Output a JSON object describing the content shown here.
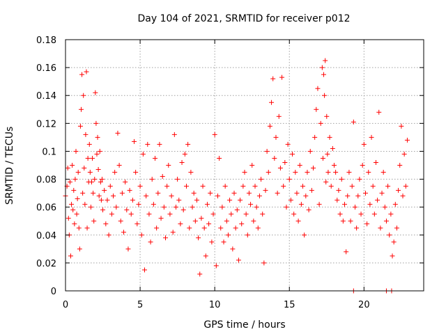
{
  "chart_data": {
    "type": "scatter",
    "title": "Day 104 of 2021, SRMTID for receiver p012",
    "xlabel": "GPS time / hours",
    "ylabel": "SRMTID / TECUs",
    "xlim": [
      0,
      24
    ],
    "ylim": [
      0,
      0.18
    ],
    "grid": true,
    "x_ticks": [
      0,
      5,
      10,
      15,
      20
    ],
    "x_tick_labels": [
      "0",
      "5",
      "10",
      "15",
      "20"
    ],
    "y_ticks": [
      0,
      0.02,
      0.04,
      0.06,
      0.08,
      0.1,
      0.12,
      0.14,
      0.16,
      0.18
    ],
    "y_tick_labels": [
      "0",
      "0.02",
      "0.04",
      "0.06",
      "0.08",
      "0.1",
      "0.12",
      "0.14",
      "0.16",
      "0.18"
    ],
    "marker": "+",
    "color": "#ff0000",
    "series": [
      {
        "name": "SRMTID",
        "points": [
          [
            0.0,
            0.068
          ],
          [
            0.1,
            0.075
          ],
          [
            0.15,
            0.088
          ],
          [
            0.2,
            0.052
          ],
          [
            0.25,
            0.04
          ],
          [
            0.3,
            0.078
          ],
          [
            0.35,
            0.025
          ],
          [
            0.4,
            0.062
          ],
          [
            0.45,
            0.09
          ],
          [
            0.5,
            0.058
          ],
          [
            0.55,
            0.072
          ],
          [
            0.6,
            0.048
          ],
          [
            0.65,
            0.08
          ],
          [
            0.7,
            0.1
          ],
          [
            0.75,
            0.055
          ],
          [
            0.8,
            0.066
          ],
          [
            0.85,
            0.085
          ],
          [
            0.9,
            0.045
          ],
          [
            0.95,
            0.03
          ],
          [
            1.0,
            0.118
          ],
          [
            1.05,
            0.13
          ],
          [
            1.1,
            0.155
          ],
          [
            1.15,
            0.07
          ],
          [
            1.2,
            0.14
          ],
          [
            1.25,
            0.088
          ],
          [
            1.3,
            0.062
          ],
          [
            1.35,
            0.112
          ],
          [
            1.4,
            0.157
          ],
          [
            1.45,
            0.045
          ],
          [
            1.5,
            0.095
          ],
          [
            1.55,
            0.078
          ],
          [
            1.6,
            0.105
          ],
          [
            1.65,
            0.085
          ],
          [
            1.7,
            0.06
          ],
          [
            1.75,
            0.078
          ],
          [
            1.8,
            0.095
          ],
          [
            1.85,
            0.07
          ],
          [
            1.9,
            0.05
          ],
          [
            1.95,
            0.08
          ],
          [
            2.0,
            0.142
          ],
          [
            2.05,
            0.12
          ],
          [
            2.1,
            0.098
          ],
          [
            2.15,
            0.11
          ],
          [
            2.2,
            0.087
          ],
          [
            2.25,
            0.068
          ],
          [
            2.3,
            0.1
          ],
          [
            2.35,
            0.078
          ],
          [
            2.4,
            0.065
          ],
          [
            2.45,
            0.08
          ],
          [
            2.5,
            0.058
          ],
          [
            2.6,
            0.072
          ],
          [
            2.7,
            0.048
          ],
          [
            2.8,
            0.065
          ],
          [
            2.9,
            0.04
          ],
          [
            3.0,
            0.075
          ],
          [
            3.1,
            0.055
          ],
          [
            3.2,
            0.068
          ],
          [
            3.3,
            0.085
          ],
          [
            3.4,
            0.06
          ],
          [
            3.5,
            0.113
          ],
          [
            3.6,
            0.09
          ],
          [
            3.7,
            0.05
          ],
          [
            3.8,
            0.07
          ],
          [
            3.9,
            0.042
          ],
          [
            4.0,
            0.078
          ],
          [
            4.1,
            0.058
          ],
          [
            4.2,
            0.03
          ],
          [
            4.3,
            0.072
          ],
          [
            4.4,
            0.055
          ],
          [
            4.5,
            0.065
          ],
          [
            4.6,
            0.107
          ],
          [
            4.7,
            0.085
          ],
          [
            4.8,
            0.048
          ],
          [
            4.9,
            0.062
          ],
          [
            5.0,
            0.075
          ],
          [
            5.1,
            0.04
          ],
          [
            5.2,
            0.098
          ],
          [
            5.3,
            0.015
          ],
          [
            5.4,
            0.068
          ],
          [
            5.5,
            0.105
          ],
          [
            5.6,
            0.055
          ],
          [
            5.7,
            0.035
          ],
          [
            5.8,
            0.08
          ],
          [
            5.9,
            0.062
          ],
          [
            6.0,
            0.095
          ],
          [
            6.1,
            0.045
          ],
          [
            6.2,
            0.07
          ],
          [
            6.3,
            0.105
          ],
          [
            6.4,
            0.052
          ],
          [
            6.5,
            0.082
          ],
          [
            6.6,
            0.06
          ],
          [
            6.7,
            0.038
          ],
          [
            6.8,
            0.075
          ],
          [
            6.9,
            0.09
          ],
          [
            7.0,
            0.055
          ],
          [
            7.1,
            0.068
          ],
          [
            7.2,
            0.042
          ],
          [
            7.3,
            0.112
          ],
          [
            7.4,
            0.06
          ],
          [
            7.5,
            0.08
          ],
          [
            7.6,
            0.065
          ],
          [
            7.7,
            0.048
          ],
          [
            7.8,
            0.092
          ],
          [
            7.9,
            0.058
          ],
          [
            8.0,
            0.098
          ],
          [
            8.1,
            0.075
          ],
          [
            8.2,
            0.105
          ],
          [
            8.3,
            0.045
          ],
          [
            8.4,
            0.085
          ],
          [
            8.5,
            0.06
          ],
          [
            8.6,
            0.07
          ],
          [
            8.7,
            0.05
          ],
          [
            8.8,
            0.065
          ],
          [
            8.9,
            0.038
          ],
          [
            9.0,
            0.012
          ],
          [
            9.1,
            0.052
          ],
          [
            9.2,
            0.075
          ],
          [
            9.3,
            0.045
          ],
          [
            9.4,
            0.025
          ],
          [
            9.5,
            0.062
          ],
          [
            9.6,
            0.048
          ],
          [
            9.7,
            0.07
          ],
          [
            9.8,
            0.035
          ],
          [
            9.9,
            0.055
          ],
          [
            10.0,
            0.112
          ],
          [
            10.1,
            0.018
          ],
          [
            10.2,
            0.068
          ],
          [
            10.3,
            0.095
          ],
          [
            10.4,
            0.045
          ],
          [
            10.5,
            0.06
          ],
          [
            10.6,
            0.035
          ],
          [
            10.7,
            0.075
          ],
          [
            10.8,
            0.05
          ],
          [
            10.9,
            0.04
          ],
          [
            11.0,
            0.065
          ],
          [
            11.1,
            0.055
          ],
          [
            11.2,
            0.03
          ],
          [
            11.3,
            0.07
          ],
          [
            11.4,
            0.045
          ],
          [
            11.5,
            0.058
          ],
          [
            11.6,
            0.022
          ],
          [
            11.7,
            0.065
          ],
          [
            11.8,
            0.048
          ],
          [
            11.9,
            0.075
          ],
          [
            12.0,
            0.085
          ],
          [
            12.1,
            0.055
          ],
          [
            12.2,
            0.04
          ],
          [
            12.3,
            0.07
          ],
          [
            12.4,
            0.062
          ],
          [
            12.5,
            0.09
          ],
          [
            12.6,
            0.05
          ],
          [
            12.7,
            0.075
          ],
          [
            12.8,
            0.06
          ],
          [
            12.9,
            0.045
          ],
          [
            13.0,
            0.068
          ],
          [
            13.1,
            0.08
          ],
          [
            13.2,
            0.055
          ],
          [
            13.3,
            0.02
          ],
          [
            13.4,
            0.072
          ],
          [
            13.5,
            0.1
          ],
          [
            13.6,
            0.085
          ],
          [
            13.7,
            0.118
          ],
          [
            13.8,
            0.135
          ],
          [
            13.9,
            0.152
          ],
          [
            14.0,
            0.095
          ],
          [
            14.1,
            0.11
          ],
          [
            14.2,
            0.07
          ],
          [
            14.3,
            0.125
          ],
          [
            14.4,
            0.088
          ],
          [
            14.5,
            0.153
          ],
          [
            14.6,
            0.075
          ],
          [
            14.7,
            0.092
          ],
          [
            14.8,
            0.06
          ],
          [
            14.9,
            0.105
          ],
          [
            15.0,
            0.08
          ],
          [
            15.1,
            0.065
          ],
          [
            15.2,
            0.098
          ],
          [
            15.3,
            0.055
          ],
          [
            15.4,
            0.085
          ],
          [
            15.5,
            0.07
          ],
          [
            15.6,
            0.05
          ],
          [
            15.7,
            0.09
          ],
          [
            15.8,
            0.062
          ],
          [
            15.9,
            0.075
          ],
          [
            16.0,
            0.04
          ],
          [
            16.1,
            0.068
          ],
          [
            16.2,
            0.085
          ],
          [
            16.3,
            0.058
          ],
          [
            16.4,
            0.1
          ],
          [
            16.5,
            0.072
          ],
          [
            16.6,
            0.088
          ],
          [
            16.7,
            0.11
          ],
          [
            16.8,
            0.13
          ],
          [
            16.9,
            0.145
          ],
          [
            17.0,
            0.062
          ],
          [
            17.1,
            0.12
          ],
          [
            17.2,
            0.16
          ],
          [
            17.25,
            0.095
          ],
          [
            17.3,
            0.155
          ],
          [
            17.35,
            0.14
          ],
          [
            17.4,
            0.165
          ],
          [
            17.45,
            0.078
          ],
          [
            17.5,
            0.125
          ],
          [
            17.55,
            0.098
          ],
          [
            17.6,
            0.085
          ],
          [
            17.7,
            0.11
          ],
          [
            17.8,
            0.075
          ],
          [
            17.9,
            0.102
          ],
          [
            18.0,
            0.09
          ],
          [
            18.1,
            0.085
          ],
          [
            18.2,
            0.065
          ],
          [
            18.3,
            0.072
          ],
          [
            18.4,
            0.055
          ],
          [
            18.5,
            0.08
          ],
          [
            18.6,
            0.05
          ],
          [
            18.7,
            0.062
          ],
          [
            18.8,
            0.028
          ],
          [
            18.9,
            0.068
          ],
          [
            19.0,
            0.085
          ],
          [
            19.1,
            0.05
          ],
          [
            19.2,
            0.075
          ],
          [
            19.3,
            0.121
          ],
          [
            19.4,
            0.06
          ],
          [
            19.5,
            0.045
          ],
          [
            19.6,
            0.068
          ],
          [
            19.7,
            0.08
          ],
          [
            19.8,
            0.055
          ],
          [
            19.9,
            0.09
          ],
          [
            20.0,
            0.105
          ],
          [
            20.1,
            0.07
          ],
          [
            20.2,
            0.048
          ],
          [
            20.3,
            0.085
          ],
          [
            20.4,
            0.062
          ],
          [
            20.5,
            0.11
          ],
          [
            20.6,
            0.075
          ],
          [
            20.7,
            0.055
          ],
          [
            20.8,
            0.092
          ],
          [
            20.9,
            0.065
          ],
          [
            21.0,
            0.128
          ],
          [
            21.1,
            0.045
          ],
          [
            21.2,
            0.07
          ],
          [
            21.3,
            0.085
          ],
          [
            21.4,
            0.06
          ],
          [
            21.5,
            0.05
          ],
          [
            21.6,
            0.075
          ],
          [
            21.7,
            0.04
          ],
          [
            21.8,
            0.055
          ],
          [
            21.9,
            0.025
          ],
          [
            22.0,
            0.035
          ],
          [
            22.1,
            0.062
          ],
          [
            22.2,
            0.045
          ],
          [
            22.3,
            0.072
          ],
          [
            22.4,
            0.09
          ],
          [
            22.5,
            0.118
          ],
          [
            22.6,
            0.068
          ],
          [
            22.7,
            0.098
          ],
          [
            22.8,
            0.075
          ],
          [
            22.9,
            0.108
          ],
          [
            19.3,
            0.0
          ],
          [
            21.5,
            0.0
          ],
          [
            21.85,
            0.0
          ]
        ]
      }
    ]
  }
}
